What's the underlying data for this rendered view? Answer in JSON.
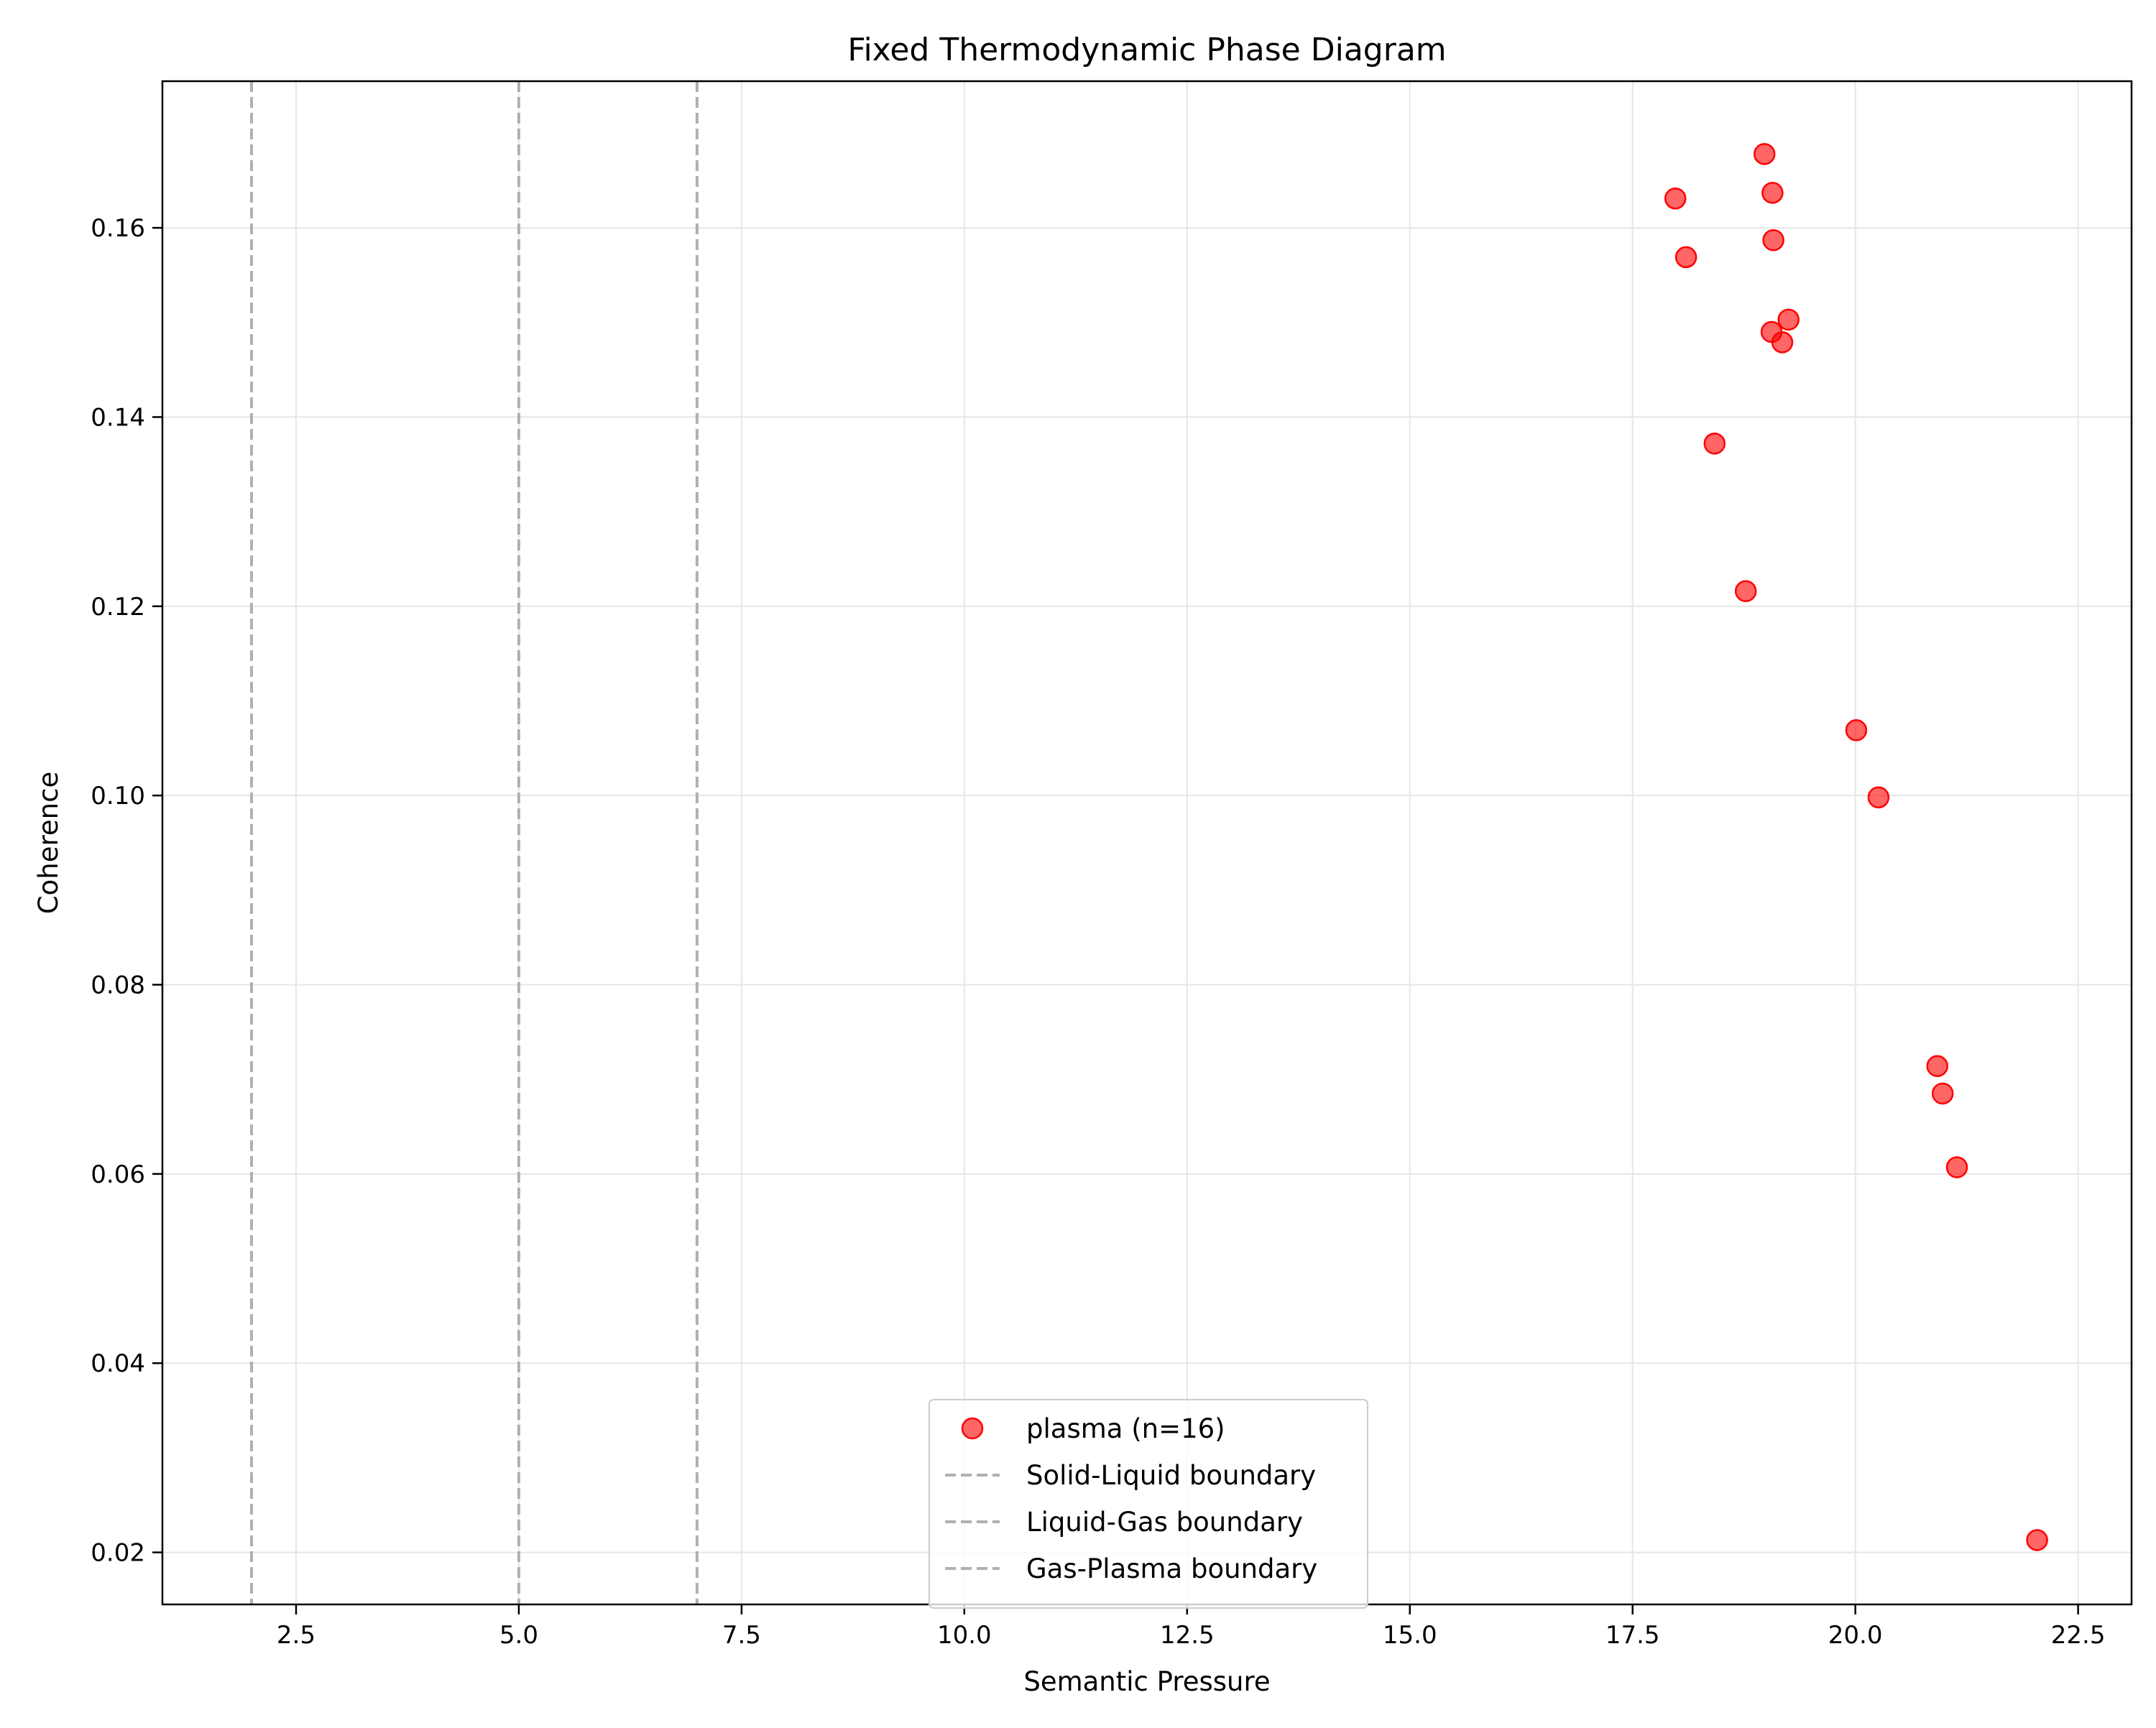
{
  "chart_data": {
    "type": "scatter",
    "title": "Fixed Thermodynamic Phase Diagram",
    "xlabel": "Semantic Pressure",
    "ylabel": "Coherence",
    "xlim": [
      1.0,
      23.1
    ],
    "ylim": [
      0.0145,
      0.1755
    ],
    "xticks": [
      2.5,
      5.0,
      7.5,
      10.0,
      12.5,
      15.0,
      17.5,
      20.0,
      22.5
    ],
    "xtick_labels": [
      "2.5",
      "5.0",
      "7.5",
      "10.0",
      "12.5",
      "15.0",
      "17.5",
      "20.0",
      "22.5"
    ],
    "yticks": [
      0.02,
      0.04,
      0.06,
      0.08,
      0.1,
      0.12,
      0.14,
      0.16
    ],
    "ytick_labels": [
      "0.02",
      "0.04",
      "0.06",
      "0.08",
      "0.10",
      "0.12",
      "0.14",
      "0.16"
    ],
    "grid": true,
    "legend_position": "lower-center",
    "series": [
      {
        "name": "plasma (n=16)",
        "color": "#ff0000",
        "points": [
          {
            "x": 18.98,
            "y": 0.1678
          },
          {
            "x": 17.98,
            "y": 0.1631
          },
          {
            "x": 19.07,
            "y": 0.1637
          },
          {
            "x": 19.08,
            "y": 0.1587
          },
          {
            "x": 18.1,
            "y": 0.1569
          },
          {
            "x": 19.25,
            "y": 0.1503
          },
          {
            "x": 19.06,
            "y": 0.149
          },
          {
            "x": 19.18,
            "y": 0.1479
          },
          {
            "x": 18.42,
            "y": 0.1372
          },
          {
            "x": 18.77,
            "y": 0.1216
          },
          {
            "x": 20.01,
            "y": 0.1069
          },
          {
            "x": 20.26,
            "y": 0.0998
          },
          {
            "x": 20.92,
            "y": 0.0714
          },
          {
            "x": 20.98,
            "y": 0.0685
          },
          {
            "x": 21.14,
            "y": 0.0607
          },
          {
            "x": 22.04,
            "y": 0.0213
          }
        ]
      }
    ],
    "boundaries": [
      {
        "name": "Solid-Liquid boundary",
        "x": 2.0,
        "color": "#b0b0b0"
      },
      {
        "name": "Liquid-Gas boundary",
        "x": 5.0,
        "color": "#b0b0b0"
      },
      {
        "name": "Gas-Plasma boundary",
        "x": 7.0,
        "color": "#b0b0b0"
      }
    ]
  }
}
